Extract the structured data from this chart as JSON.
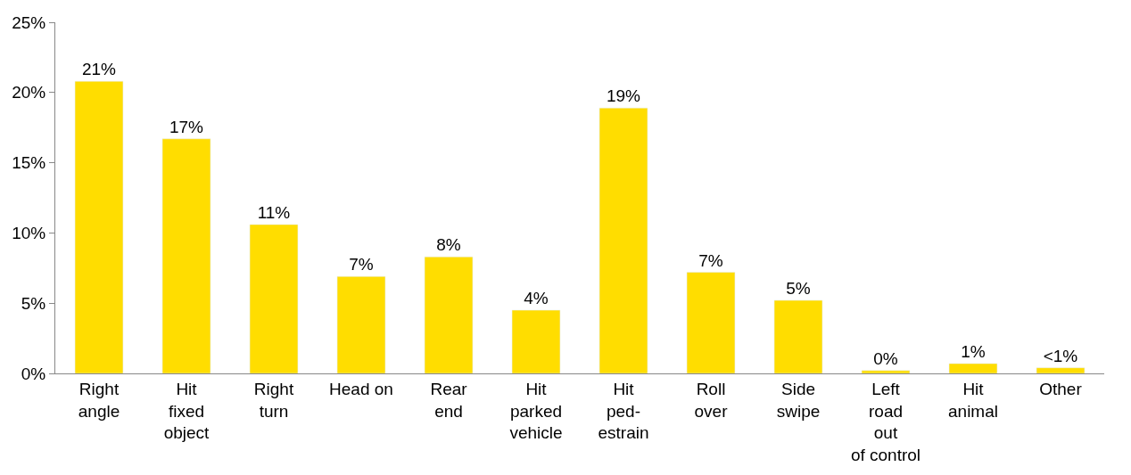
{
  "chart_data": {
    "type": "bar",
    "categories": [
      "Right\nangle",
      "Hit\nfixed\nobject",
      "Right\nturn",
      "Head on",
      "Rear\nend",
      "Hit\nparked\nvehicle",
      "Hit\nped-\nestrain",
      "Roll\nover",
      "Side\nswipe",
      "Left\nroad\nout\nof control",
      "Hit\nanimal",
      "Other"
    ],
    "values": [
      20.8,
      16.7,
      10.6,
      6.9,
      8.3,
      4.5,
      18.9,
      7.2,
      5.2,
      0.2,
      0.7,
      0.4
    ],
    "value_labels": [
      "21%",
      "17%",
      "11%",
      "7%",
      "8%",
      "4%",
      "19%",
      "7%",
      "5%",
      "0%",
      "1%",
      "<1%"
    ],
    "color": "#ffdd00",
    "ylim": [
      0,
      25
    ],
    "yticks": [
      {
        "value": 0,
        "label": "0%"
      },
      {
        "value": 5,
        "label": "5%"
      },
      {
        "value": 10,
        "label": "10%"
      },
      {
        "value": 15,
        "label": "15%"
      },
      {
        "value": 20,
        "label": "20%"
      },
      {
        "value": 25,
        "label": "25%"
      }
    ]
  }
}
